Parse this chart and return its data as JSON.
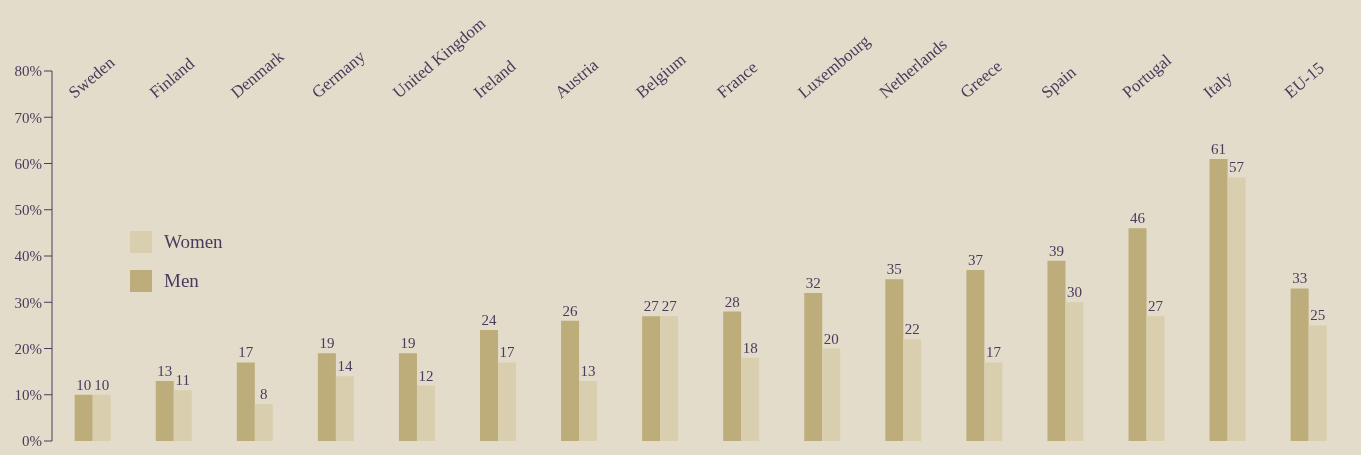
{
  "chart_data": {
    "type": "bar",
    "categories": [
      "Sweden",
      "Finland",
      "Denmark",
      "Germany",
      "United Kingdom",
      "Ireland",
      "Austria",
      "Belgium",
      "France",
      "Luxembourg",
      "Netherlands",
      "Greece",
      "Spain",
      "Portugal",
      "Italy",
      "EU-15"
    ],
    "series": [
      {
        "name": "Men",
        "color": "#bcad7a",
        "values": [
          10,
          13,
          17,
          19,
          19,
          24,
          26,
          27,
          28,
          32,
          35,
          37,
          39,
          46,
          61,
          33
        ]
      },
      {
        "name": "Women",
        "color": "#d9cfae",
        "values": [
          10,
          11,
          8,
          14,
          12,
          17,
          13,
          27,
          18,
          20,
          22,
          17,
          30,
          27,
          57,
          25
        ]
      }
    ],
    "ylim": [
      0,
      80
    ],
    "yticks": [
      {
        "value": 0,
        "label": "0%"
      },
      {
        "value": 10,
        "label": "10%"
      },
      {
        "value": 20,
        "label": "20%"
      },
      {
        "value": 30,
        "label": "30%"
      },
      {
        "value": 40,
        "label": "40%"
      },
      {
        "value": 50,
        "label": "50%"
      },
      {
        "value": 60,
        "label": "60%"
      },
      {
        "value": 70,
        "label": "70%"
      },
      {
        "value": 80,
        "label": "80%"
      }
    ],
    "grid": false,
    "legend": "left",
    "data_labels": true
  }
}
